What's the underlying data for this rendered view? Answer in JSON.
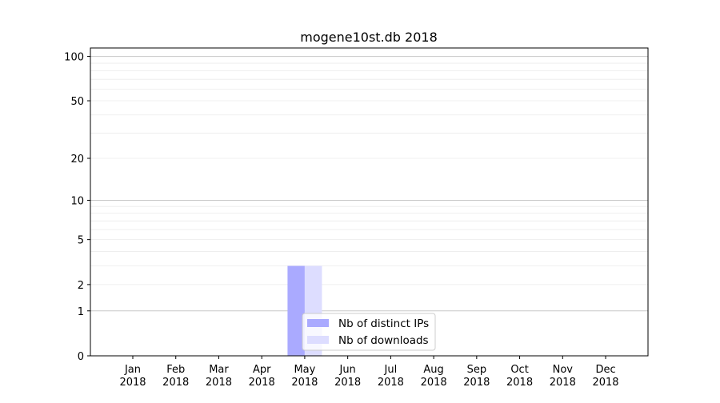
{
  "chart_data": {
    "type": "bar",
    "title": "mogene10st.db 2018",
    "xlabel": "",
    "ylabel": "",
    "yscale": "symlog (log of 1+y)",
    "ylim": [
      0,
      116
    ],
    "grid": true,
    "legend_position": "lower-center",
    "categories": [
      "Jan\n2018",
      "Feb\n2018",
      "Mar\n2018",
      "Apr\n2018",
      "May\n2018",
      "Jun\n2018",
      "Jul\n2018",
      "Aug\n2018",
      "Sep\n2018",
      "Oct\n2018",
      "Nov\n2018",
      "Dec\n2018"
    ],
    "ytick_labels": [
      "0",
      "1",
      "2",
      "5",
      "10",
      "20",
      "50",
      "100"
    ],
    "yticks": [
      0,
      1,
      2,
      5,
      10,
      20,
      50,
      100
    ],
    "series": [
      {
        "name": "Nb of distinct IPs",
        "color": "#aaaaff",
        "values": [
          0,
          0,
          0,
          0,
          3,
          0,
          0,
          0,
          0,
          0,
          0,
          0
        ]
      },
      {
        "name": "Nb of downloads",
        "color": "#ddddff",
        "values": [
          0,
          0,
          0,
          0,
          3,
          0,
          0,
          0,
          0,
          0,
          0,
          0
        ]
      }
    ]
  }
}
